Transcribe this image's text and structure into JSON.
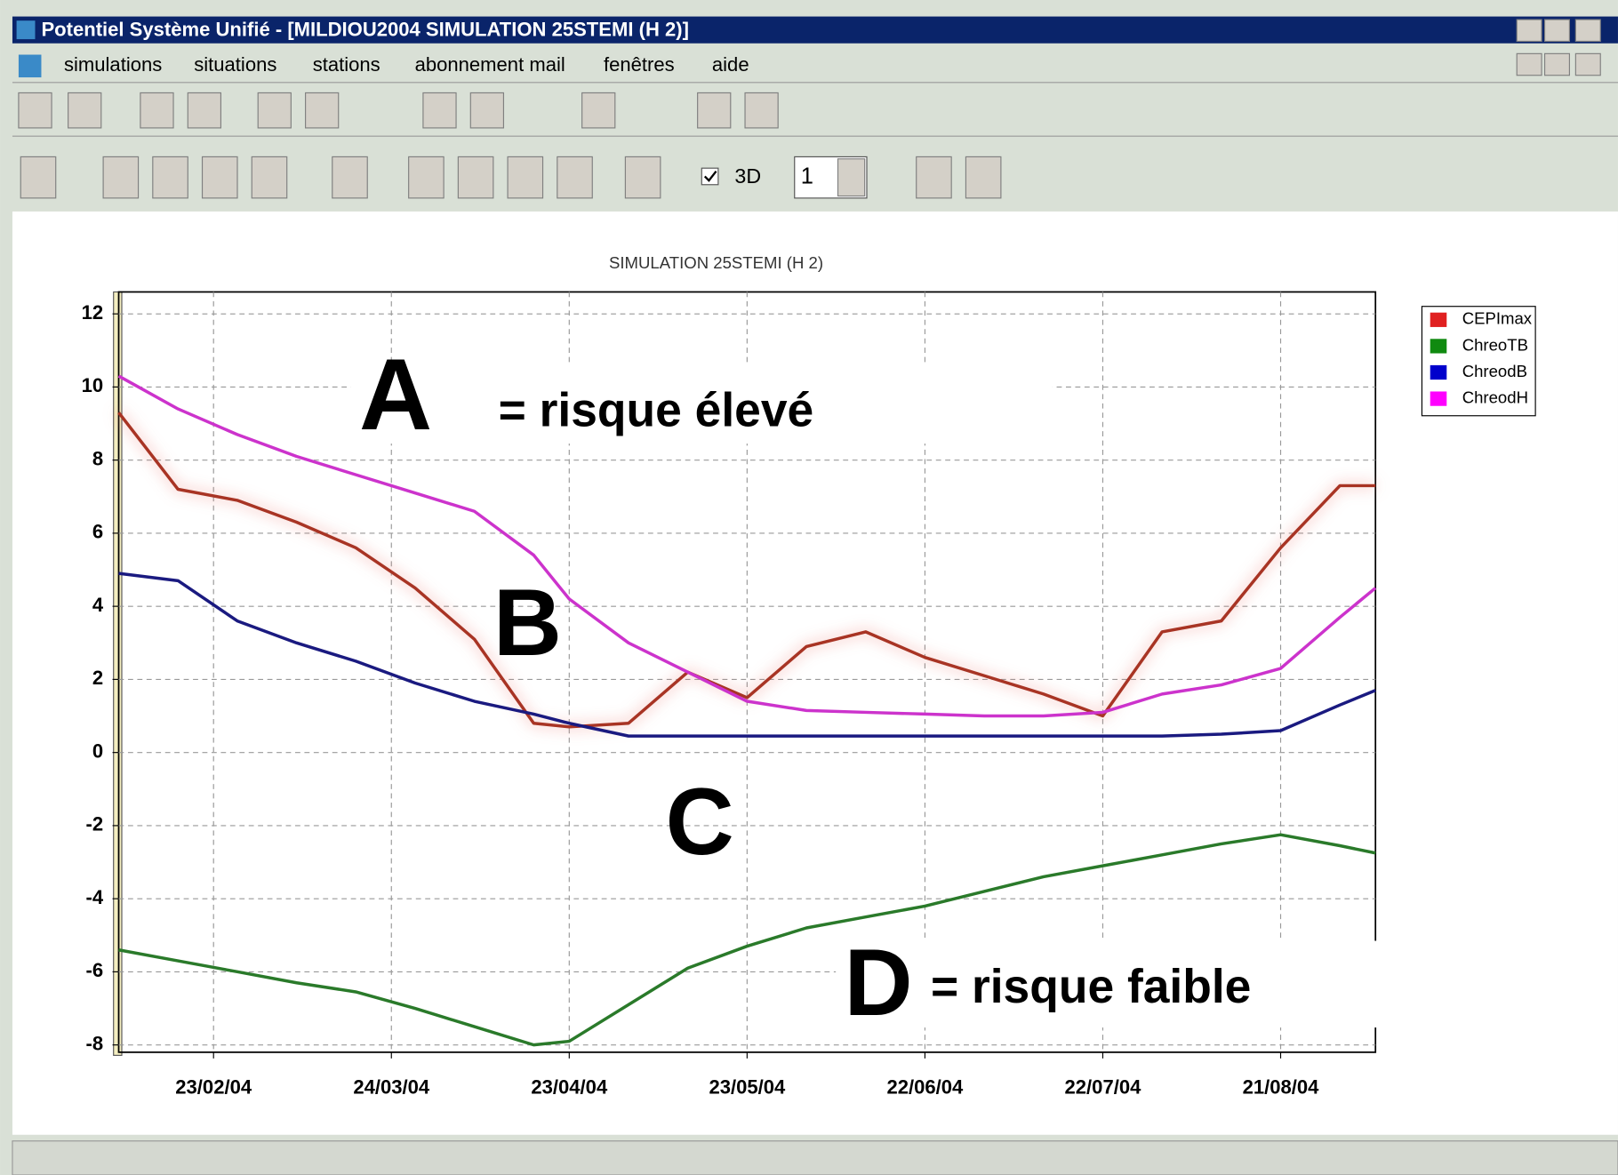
{
  "window": {
    "title": "Potentiel Système Unifié - [MILDIOU2004 SIMULATION 25STEMI (H 2)]",
    "menu": [
      "simulations",
      "situations",
      "stations",
      "abonnement mail",
      "fenêtres",
      "aide"
    ]
  },
  "toolbar": {
    "checkbox_label": "3D",
    "spin_value": "1"
  },
  "chart_data": {
    "type": "line",
    "title": "SIMULATION 25STEMI (H 2)",
    "x": [
      "2004-02-07",
      "2004-02-17",
      "2004-02-27",
      "2004-03-08",
      "2004-03-18",
      "2004-03-28",
      "2004-04-07",
      "2004-04-17",
      "2004-04-23",
      "2004-05-03",
      "2004-05-13",
      "2004-05-23",
      "2004-06-02",
      "2004-06-12",
      "2004-06-22",
      "2004-07-02",
      "2004-07-12",
      "2004-07-22",
      "2004-08-01",
      "2004-08-11",
      "2004-08-21",
      "2004-08-31",
      "2004-09-06"
    ],
    "series": [
      {
        "name": "CEPImax",
        "color": "#a83424",
        "legend_color": "#e02020",
        "values": [
          9.3,
          7.2,
          6.9,
          6.3,
          5.6,
          4.5,
          3.1,
          0.8,
          0.7,
          0.8,
          2.2,
          1.5,
          2.9,
          3.3,
          2.6,
          2.1,
          1.6,
          1.0,
          3.3,
          3.6,
          5.6,
          7.3,
          7.3
        ]
      },
      {
        "name": "ChreoTB",
        "color": "#2a7a2a",
        "legend_color": "#108a10",
        "values": [
          -5.4,
          -5.7,
          -6.0,
          -6.3,
          -6.55,
          -7.0,
          -7.5,
          -8.0,
          -7.9,
          -6.9,
          -5.9,
          -5.3,
          -4.8,
          -4.5,
          -4.2,
          -3.8,
          -3.4,
          -3.1,
          -2.8,
          -2.5,
          -2.25,
          -2.55,
          -2.75
        ]
      },
      {
        "name": "ChreodB",
        "color": "#1a1a80",
        "legend_color": "#0000cc",
        "values": [
          4.9,
          4.7,
          3.6,
          3.0,
          2.5,
          1.9,
          1.4,
          1.05,
          0.8,
          0.45,
          0.45,
          0.45,
          0.45,
          0.45,
          0.45,
          0.45,
          0.45,
          0.45,
          0.45,
          0.5,
          0.6,
          1.3,
          1.7
        ]
      },
      {
        "name": "ChreodH",
        "color": "#cc33cc",
        "legend_color": "#ff00ff",
        "values": [
          10.3,
          9.4,
          8.7,
          8.1,
          7.6,
          7.1,
          6.6,
          5.4,
          4.2,
          3.0,
          2.2,
          1.4,
          1.15,
          1.1,
          1.05,
          1.0,
          1.0,
          1.1,
          1.6,
          1.85,
          2.3,
          3.7,
          4.5
        ]
      }
    ],
    "xlim": [
      "2004-02-07",
      "2004-09-06"
    ],
    "xticks": [
      {
        "value": "2004-02-23",
        "label": "23/02/04"
      },
      {
        "value": "2004-03-24",
        "label": "24/03/04"
      },
      {
        "value": "2004-04-23",
        "label": "23/04/04"
      },
      {
        "value": "2004-05-23",
        "label": "23/05/04"
      },
      {
        "value": "2004-06-22",
        "label": "22/06/04"
      },
      {
        "value": "2004-07-22",
        "label": "22/07/04"
      },
      {
        "value": "2004-08-21",
        "label": "21/08/04"
      }
    ],
    "ylim": [
      -8.2,
      12.6
    ],
    "yticks": [
      -8,
      -6,
      -4,
      -2,
      0,
      2,
      4,
      6,
      8,
      10,
      12
    ],
    "grid": true,
    "legend": "right",
    "annotations": [
      "A",
      "= risque élevé",
      "B",
      "C",
      "D",
      "= risque faible"
    ]
  }
}
